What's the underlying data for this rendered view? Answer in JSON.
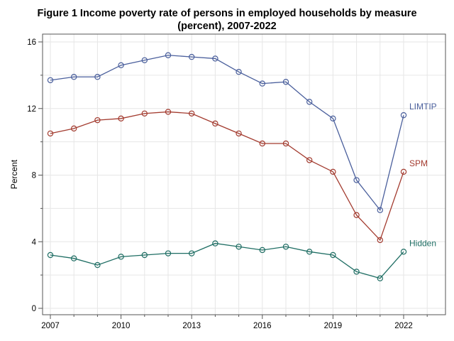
{
  "chart_data": {
    "type": "line",
    "title_line1": "Figure 1 Income poverty rate of persons in employed households by measure",
    "title_line2": "(percent), 2007-2022",
    "xlabel": "",
    "ylabel": "Percent",
    "xlim": [
      2007,
      2024
    ],
    "ylim": [
      0,
      16
    ],
    "xticks": [
      2007,
      2010,
      2013,
      2016,
      2019,
      2022
    ],
    "yticks": [
      0,
      4,
      8,
      12,
      16
    ],
    "grid": true,
    "x": [
      2007,
      2008,
      2009,
      2010,
      2011,
      2012,
      2013,
      2014,
      2015,
      2016,
      2017,
      2018,
      2019,
      2020,
      2021,
      2022
    ],
    "series": [
      {
        "name": "LIMTIP",
        "color": "#4a5f9c",
        "values": [
          13.7,
          13.9,
          13.9,
          14.6,
          14.9,
          15.2,
          15.1,
          15.0,
          14.2,
          13.5,
          13.6,
          12.4,
          11.4,
          7.7,
          5.9,
          11.6
        ]
      },
      {
        "name": "SPM",
        "color": "#a33b2f",
        "values": [
          10.5,
          10.8,
          11.3,
          11.4,
          11.7,
          11.8,
          11.7,
          11.1,
          10.5,
          9.9,
          9.9,
          8.9,
          8.2,
          5.6,
          4.1,
          8.2
        ]
      },
      {
        "name": "Hidden",
        "color": "#1f6e64",
        "values": [
          3.2,
          3.0,
          2.6,
          3.1,
          3.2,
          3.3,
          3.3,
          3.9,
          3.7,
          3.5,
          3.7,
          3.4,
          3.2,
          2.2,
          1.8,
          3.4
        ]
      }
    ]
  }
}
